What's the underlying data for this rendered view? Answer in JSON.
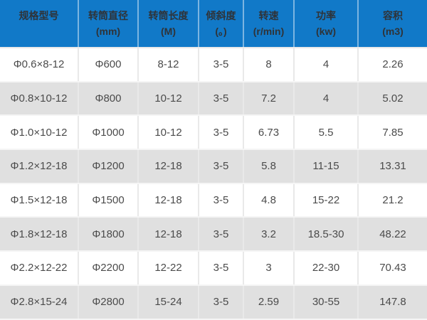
{
  "colors": {
    "header_bg": "#1179c8",
    "header_text": "#2f3338",
    "body_text": "#4b4b4b",
    "row_alt_bg": "#e0e0e0",
    "grid_line": "#e9e9e9"
  },
  "chart_data": {
    "type": "table",
    "columns": [
      {
        "label": "规格型号",
        "unit": ""
      },
      {
        "label": "转筒直径",
        "unit": "(mm)"
      },
      {
        "label": "转筒长度",
        "unit": "(M)"
      },
      {
        "label": "倾斜度",
        "unit": "(。)"
      },
      {
        "label": "转速",
        "unit": "(r/min)"
      },
      {
        "label": "功率",
        "unit": "(kw)"
      },
      {
        "label": "容积",
        "unit": "(m3)"
      }
    ],
    "rows": [
      [
        "Φ0.6×8-12",
        "Φ600",
        "8-12",
        "3-5",
        "8",
        "4",
        "2.26"
      ],
      [
        "Φ0.8×10-12",
        "Φ800",
        "10-12",
        "3-5",
        "7.2",
        "4",
        "5.02"
      ],
      [
        "Φ1.0×10-12",
        "Φ1000",
        "10-12",
        "3-5",
        "6.73",
        "5.5",
        "7.85"
      ],
      [
        "Φ1.2×12-18",
        "Φ1200",
        "12-18",
        "3-5",
        "5.8",
        "11-15",
        "13.31"
      ],
      [
        "Φ1.5×12-18",
        "Φ1500",
        "12-18",
        "3-5",
        "4.8",
        "15-22",
        "21.2"
      ],
      [
        "Φ1.8×12-18",
        "Φ1800",
        "12-18",
        "3-5",
        "3.2",
        "18.5-30",
        "48.22"
      ],
      [
        "Φ2.2×12-22",
        "Φ2200",
        "12-22",
        "3-5",
        "3",
        "22-30",
        "70.43"
      ],
      [
        "Φ2.8×15-24",
        "Φ2800",
        "15-24",
        "3-5",
        "2.59",
        "30-55",
        "147.8"
      ]
    ]
  }
}
